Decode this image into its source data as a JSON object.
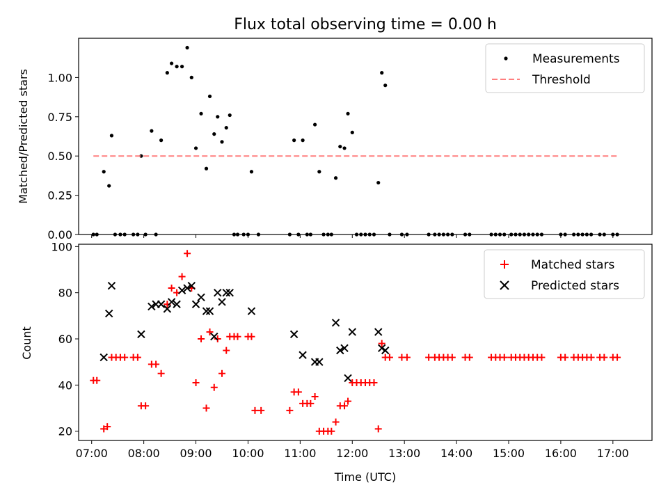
{
  "chart_data": [
    {
      "type": "scatter",
      "title": "Flux total observing time = 0.00 h",
      "xlabel": "",
      "ylabel": "Matched/Predicted stars",
      "xlim": [
        "06:45",
        "17:45"
      ],
      "ylim": [
        0,
        1.25
      ],
      "yticks": [
        "0.00",
        "0.25",
        "0.50",
        "0.75",
        "1.00"
      ],
      "legend_position": "top-right",
      "series": [
        {
          "name": "Measurements",
          "marker": "dot",
          "color": "#000000",
          "points": [
            [
              "07:02",
              0.0
            ],
            [
              "07:06",
              0.0
            ],
            [
              "07:14",
              0.4
            ],
            [
              "07:20",
              0.31
            ],
            [
              "07:23",
              0.63
            ],
            [
              "07:27",
              0.0
            ],
            [
              "07:33",
              0.0
            ],
            [
              "07:38",
              0.0
            ],
            [
              "07:48",
              0.0
            ],
            [
              "07:53",
              0.0
            ],
            [
              "07:57",
              0.5
            ],
            [
              "08:02",
              0.0
            ],
            [
              "08:09",
              0.66
            ],
            [
              "08:14",
              0.0
            ],
            [
              "08:20",
              0.6
            ],
            [
              "08:27",
              1.03
            ],
            [
              "08:32",
              1.09
            ],
            [
              "08:38",
              1.07
            ],
            [
              "08:44",
              1.07
            ],
            [
              "08:50",
              1.19
            ],
            [
              "08:55",
              1.0
            ],
            [
              "09:00",
              0.55
            ],
            [
              "09:06",
              0.77
            ],
            [
              "09:12",
              0.42
            ],
            [
              "09:16",
              0.88
            ],
            [
              "09:21",
              0.64
            ],
            [
              "09:25",
              0.75
            ],
            [
              "09:30",
              0.59
            ],
            [
              "09:35",
              0.68
            ],
            [
              "09:39",
              0.76
            ],
            [
              "09:44",
              0.0
            ],
            [
              "09:48",
              0.0
            ],
            [
              "09:55",
              0.0
            ],
            [
              "10:00",
              0.0
            ],
            [
              "10:04",
              0.4
            ],
            [
              "10:12",
              0.0
            ],
            [
              "10:48",
              0.0
            ],
            [
              "10:53",
              0.6
            ],
            [
              "10:58",
              0.0
            ],
            [
              "11:03",
              0.6
            ],
            [
              "11:08",
              0.0
            ],
            [
              "11:12",
              0.0
            ],
            [
              "11:17",
              0.7
            ],
            [
              "11:22",
              0.4
            ],
            [
              "11:27",
              0.0
            ],
            [
              "11:32",
              0.0
            ],
            [
              "11:36",
              0.0
            ],
            [
              "11:41",
              0.36
            ],
            [
              "11:46",
              0.56
            ],
            [
              "11:51",
              0.55
            ],
            [
              "11:55",
              0.77
            ],
            [
              "12:00",
              0.65
            ],
            [
              "12:05",
              0.0
            ],
            [
              "12:10",
              0.0
            ],
            [
              "12:15",
              0.0
            ],
            [
              "12:20",
              0.0
            ],
            [
              "12:25",
              0.0
            ],
            [
              "12:30",
              0.33
            ],
            [
              "12:34",
              1.03
            ],
            [
              "12:38",
              0.95
            ],
            [
              "12:43",
              0.0
            ],
            [
              "12:57",
              0.0
            ],
            [
              "13:03",
              0.0
            ],
            [
              "13:28",
              0.0
            ],
            [
              "13:35",
              0.0
            ],
            [
              "13:40",
              0.0
            ],
            [
              "13:45",
              0.0
            ],
            [
              "13:50",
              0.0
            ],
            [
              "13:55",
              0.0
            ],
            [
              "14:10",
              0.0
            ],
            [
              "14:15",
              0.0
            ],
            [
              "14:40",
              0.0
            ],
            [
              "14:45",
              0.0
            ],
            [
              "14:50",
              0.0
            ],
            [
              "14:55",
              0.0
            ],
            [
              "15:03",
              0.0
            ],
            [
              "15:08",
              0.0
            ],
            [
              "15:13",
              0.0
            ],
            [
              "15:18",
              0.0
            ],
            [
              "15:23",
              0.0
            ],
            [
              "15:28",
              0.0
            ],
            [
              "15:33",
              0.0
            ],
            [
              "15:38",
              0.0
            ],
            [
              "16:00",
              0.0
            ],
            [
              "16:05",
              0.0
            ],
            [
              "16:15",
              0.0
            ],
            [
              "16:20",
              0.0
            ],
            [
              "16:25",
              0.0
            ],
            [
              "16:30",
              0.0
            ],
            [
              "16:35",
              0.0
            ],
            [
              "16:45",
              0.0
            ],
            [
              "16:50",
              0.0
            ],
            [
              "17:00",
              0.0
            ],
            [
              "17:05",
              0.0
            ]
          ]
        },
        {
          "name": "Threshold",
          "line_style": "dashed",
          "color": "#ff7f7f",
          "y": 0.5,
          "x_range": [
            "07:02",
            "17:05"
          ]
        }
      ]
    },
    {
      "type": "scatter",
      "title": "",
      "xlabel": "Time (UTC)",
      "ylabel": "Count",
      "xlim": [
        "06:45",
        "17:45"
      ],
      "ylim": [
        16,
        101
      ],
      "yticks": [
        "20",
        "40",
        "60",
        "80",
        "100"
      ],
      "xticks": [
        "07:00",
        "08:00",
        "09:00",
        "10:00",
        "11:00",
        "12:00",
        "13:00",
        "14:00",
        "15:00",
        "16:00",
        "17:00"
      ],
      "legend_position": "top-right",
      "series": [
        {
          "name": "Matched stars",
          "marker": "plus",
          "color": "#ff0000",
          "points": [
            [
              "07:02",
              42
            ],
            [
              "07:06",
              42
            ],
            [
              "07:14",
              21
            ],
            [
              "07:18",
              22
            ],
            [
              "07:23",
              52
            ],
            [
              "07:28",
              52
            ],
            [
              "07:33",
              52
            ],
            [
              "07:38",
              52
            ],
            [
              "07:48",
              52
            ],
            [
              "07:53",
              52
            ],
            [
              "07:57",
              31
            ],
            [
              "08:02",
              31
            ],
            [
              "08:09",
              49
            ],
            [
              "08:14",
              49
            ],
            [
              "08:20",
              45
            ],
            [
              "08:27",
              75
            ],
            [
              "08:32",
              82
            ],
            [
              "08:38",
              80
            ],
            [
              "08:44",
              87
            ],
            [
              "08:50",
              97
            ],
            [
              "08:55",
              82
            ],
            [
              "09:00",
              41
            ],
            [
              "09:06",
              60
            ],
            [
              "09:12",
              30
            ],
            [
              "09:16",
              63
            ],
            [
              "09:21",
              39
            ],
            [
              "09:25",
              60
            ],
            [
              "09:30",
              45
            ],
            [
              "09:35",
              55
            ],
            [
              "09:39",
              61
            ],
            [
              "09:44",
              61
            ],
            [
              "09:48",
              61
            ],
            [
              "10:00",
              61
            ],
            [
              "10:04",
              61
            ],
            [
              "10:08",
              29
            ],
            [
              "10:15",
              29
            ],
            [
              "10:48",
              29
            ],
            [
              "10:53",
              37
            ],
            [
              "10:58",
              37
            ],
            [
              "11:03",
              32
            ],
            [
              "11:08",
              32
            ],
            [
              "11:12",
              32
            ],
            [
              "11:17",
              35
            ],
            [
              "11:22",
              20
            ],
            [
              "11:27",
              20
            ],
            [
              "11:32",
              20
            ],
            [
              "11:36",
              20
            ],
            [
              "11:41",
              24
            ],
            [
              "11:46",
              31
            ],
            [
              "11:51",
              31
            ],
            [
              "11:55",
              33
            ],
            [
              "12:00",
              41
            ],
            [
              "12:05",
              41
            ],
            [
              "12:10",
              41
            ],
            [
              "12:15",
              41
            ],
            [
              "12:20",
              41
            ],
            [
              "12:25",
              41
            ],
            [
              "12:30",
              21
            ],
            [
              "12:34",
              58
            ],
            [
              "12:38",
              52
            ],
            [
              "12:43",
              52
            ],
            [
              "12:57",
              52
            ],
            [
              "13:03",
              52
            ],
            [
              "13:28",
              52
            ],
            [
              "13:35",
              52
            ],
            [
              "13:40",
              52
            ],
            [
              "13:45",
              52
            ],
            [
              "13:50",
              52
            ],
            [
              "13:55",
              52
            ],
            [
              "14:10",
              52
            ],
            [
              "14:15",
              52
            ],
            [
              "14:40",
              52
            ],
            [
              "14:45",
              52
            ],
            [
              "14:50",
              52
            ],
            [
              "14:55",
              52
            ],
            [
              "15:03",
              52
            ],
            [
              "15:08",
              52
            ],
            [
              "15:13",
              52
            ],
            [
              "15:18",
              52
            ],
            [
              "15:23",
              52
            ],
            [
              "15:28",
              52
            ],
            [
              "15:33",
              52
            ],
            [
              "15:38",
              52
            ],
            [
              "16:00",
              52
            ],
            [
              "16:05",
              52
            ],
            [
              "16:15",
              52
            ],
            [
              "16:20",
              52
            ],
            [
              "16:25",
              52
            ],
            [
              "16:30",
              52
            ],
            [
              "16:35",
              52
            ],
            [
              "16:45",
              52
            ],
            [
              "16:50",
              52
            ],
            [
              "17:00",
              52
            ],
            [
              "17:05",
              52
            ]
          ]
        },
        {
          "name": "Predicted stars",
          "marker": "x",
          "color": "#000000",
          "points": [
            [
              "07:14",
              52
            ],
            [
              "07:20",
              71
            ],
            [
              "07:23",
              83
            ],
            [
              "07:57",
              62
            ],
            [
              "08:09",
              74
            ],
            [
              "08:14",
              75
            ],
            [
              "08:20",
              75
            ],
            [
              "08:27",
              73
            ],
            [
              "08:32",
              76
            ],
            [
              "08:38",
              75
            ],
            [
              "08:44",
              81
            ],
            [
              "08:50",
              82
            ],
            [
              "08:55",
              83
            ],
            [
              "09:00",
              75
            ],
            [
              "09:06",
              78
            ],
            [
              "09:12",
              72
            ],
            [
              "09:16",
              72
            ],
            [
              "09:21",
              61
            ],
            [
              "09:25",
              80
            ],
            [
              "09:30",
              76
            ],
            [
              "09:35",
              80
            ],
            [
              "09:39",
              80
            ],
            [
              "10:04",
              72
            ],
            [
              "10:53",
              62
            ],
            [
              "11:03",
              53
            ],
            [
              "11:17",
              50
            ],
            [
              "11:22",
              50
            ],
            [
              "11:41",
              67
            ],
            [
              "11:46",
              55
            ],
            [
              "11:51",
              56
            ],
            [
              "11:55",
              43
            ],
            [
              "12:00",
              63
            ],
            [
              "12:30",
              63
            ],
            [
              "12:34",
              56
            ],
            [
              "12:38",
              55
            ]
          ]
        }
      ]
    }
  ]
}
